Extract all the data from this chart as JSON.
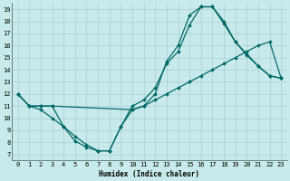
{
  "xlabel": "Humidex (Indice chaleur)",
  "bg_color": "#c8eaea",
  "grid_color": "#a8d0d0",
  "line_color": "#006868",
  "xlim": [
    -0.5,
    23.5
  ],
  "ylim": [
    6.5,
    19.5
  ],
  "xticks": [
    0,
    1,
    2,
    3,
    4,
    5,
    6,
    7,
    8,
    9,
    10,
    11,
    12,
    13,
    14,
    15,
    16,
    17,
    18,
    19,
    20,
    21,
    22,
    23
  ],
  "yticks": [
    7,
    8,
    9,
    10,
    11,
    12,
    13,
    14,
    15,
    16,
    17,
    18,
    19
  ],
  "line1_x": [
    0,
    1,
    2,
    3,
    4,
    5,
    6,
    7,
    8,
    9,
    10,
    11,
    12,
    13,
    14,
    15,
    16,
    17,
    18,
    19,
    20,
    21,
    22,
    23
  ],
  "line1_y": [
    12,
    11,
    10.7,
    10.0,
    9.3,
    8.5,
    7.8,
    7.3,
    7.3,
    9.3,
    11.0,
    11.5,
    12.5,
    14.5,
    15.5,
    17.7,
    19.2,
    19.2,
    17.8,
    16.3,
    15.3,
    14.3,
    13.5,
    13.3
  ],
  "line2_x": [
    0,
    1,
    2,
    3,
    4,
    5,
    6,
    7,
    8,
    9,
    10,
    11,
    12,
    13,
    14,
    15,
    16,
    17,
    18,
    19,
    20,
    21,
    22,
    23
  ],
  "line2_y": [
    12,
    11,
    11,
    11,
    9.3,
    8.1,
    7.6,
    7.3,
    7.3,
    9.3,
    10.7,
    11.0,
    12.0,
    14.7,
    16.0,
    18.5,
    19.2,
    19.2,
    18.0,
    16.3,
    15.2,
    14.3,
    13.5,
    13.3
  ],
  "line3_x": [
    0,
    1,
    2,
    3,
    10,
    11,
    12,
    13,
    14,
    15,
    16,
    17,
    18,
    19,
    20,
    21,
    22,
    23
  ],
  "line3_y": [
    12,
    11,
    11,
    11,
    10.7,
    11.0,
    11.5,
    12.0,
    12.5,
    13.0,
    13.5,
    14.0,
    14.5,
    15.0,
    15.5,
    16.0,
    16.3,
    13.3
  ],
  "marker": "D",
  "markersize": 1.8,
  "linewidth": 0.9,
  "xlabel_fontsize": 5.5,
  "tick_fontsize": 5
}
